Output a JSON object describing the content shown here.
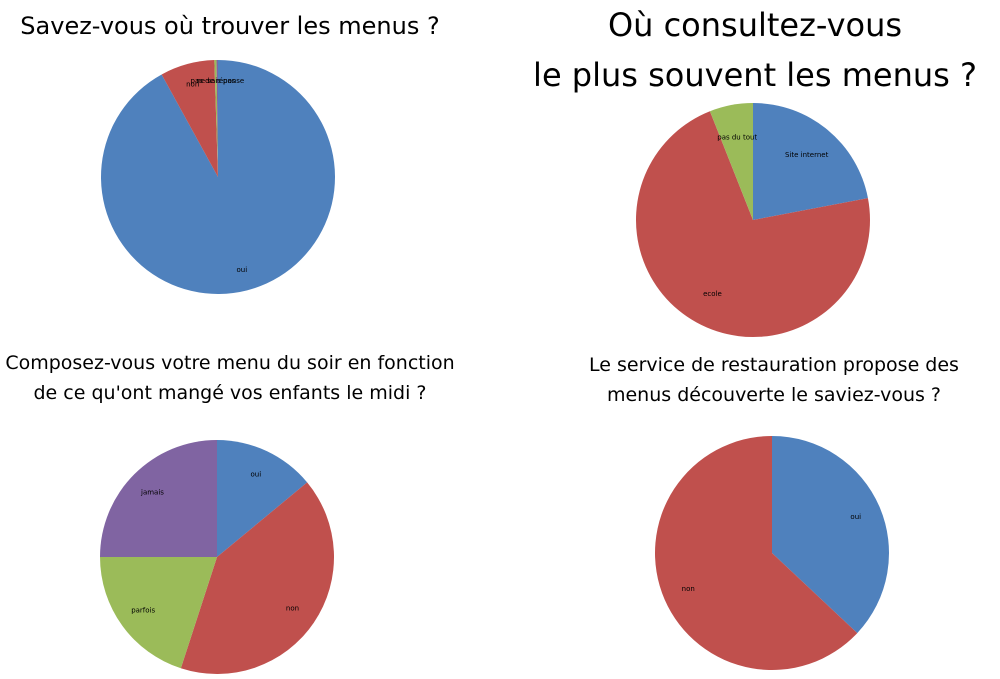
{
  "chart_data": [
    {
      "type": "pie",
      "title": "Savez-vous où trouver les menus ?",
      "labels": [
        "oui",
        "non",
        "ne sais pas",
        "pas de réponse"
      ],
      "values": [
        92,
        7.5,
        0.3,
        0.2
      ],
      "colors": [
        "#4F81BD",
        "#C0504D",
        "#9BBB59",
        "#8064A2"
      ]
    },
    {
      "type": "pie",
      "title": "Où consultez-vous\nle plus souvent les menus ?",
      "labels": [
        "Site internet",
        "ecole",
        "pas du tout"
      ],
      "values": [
        22,
        72,
        6
      ],
      "colors": [
        "#4F81BD",
        "#C0504D",
        "#9BBB59"
      ]
    },
    {
      "type": "pie",
      "title": "Composez-vous votre menu du soir en fonction\nde ce qu'ont mangé vos enfants le midi ?",
      "labels": [
        "oui",
        "non",
        "parfois",
        "jamais"
      ],
      "values": [
        14,
        41,
        20,
        25
      ],
      "colors": [
        "#4F81BD",
        "#C0504D",
        "#9BBB59",
        "#8064A2"
      ]
    },
    {
      "type": "pie",
      "title": "Le service de restauration propose des\nmenus découverte le saviez-vous ?",
      "labels": [
        "oui",
        "non"
      ],
      "values": [
        37,
        63
      ],
      "colors": [
        "#4F81BD",
        "#C0504D"
      ]
    }
  ]
}
